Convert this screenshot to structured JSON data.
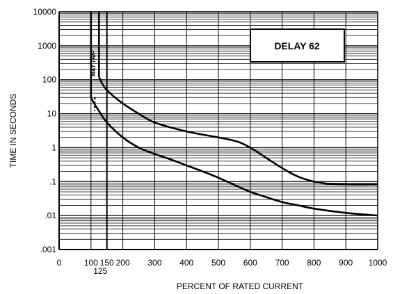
{
  "chart_data": {
    "type": "line",
    "title": "",
    "xlabel": "PERCENT OF RATED CURRENT",
    "ylabel": "TIME IN SECONDS",
    "x_scale": "linear",
    "y_scale": "log",
    "xlim": [
      0,
      1000
    ],
    "ylim": [
      0.001,
      10000
    ],
    "grid": true,
    "x_ticks": [
      {
        "value": 0,
        "label": "0"
      },
      {
        "value": 100,
        "label": "100"
      },
      {
        "value": 150,
        "label": "150"
      },
      {
        "value": 200,
        "label": "200"
      },
      {
        "value": 300,
        "label": "300"
      },
      {
        "value": 400,
        "label": "400"
      },
      {
        "value": 500,
        "label": "500"
      },
      {
        "value": 600,
        "label": "600"
      },
      {
        "value": 700,
        "label": "700"
      },
      {
        "value": 800,
        "label": "800"
      },
      {
        "value": 900,
        "label": "900"
      },
      {
        "value": 1000,
        "label": "1000"
      }
    ],
    "x_extra_tick": {
      "value": 125,
      "label": "125"
    },
    "y_ticks": [
      {
        "value": 10000,
        "label": "10000"
      },
      {
        "value": 1000,
        "label": "1000"
      },
      {
        "value": 100,
        "label": "100"
      },
      {
        "value": 10,
        "label": "10"
      },
      {
        "value": 1,
        "label": "1"
      },
      {
        "value": 0.1,
        "label": ".1"
      },
      {
        "value": 0.01,
        "label": ".01"
      },
      {
        "value": 0.001,
        "label": ".001"
      }
    ],
    "legend": {
      "text": "DELAY 62",
      "position": "top-right"
    },
    "annotations": [
      {
        "text": "MAY TRIP",
        "x_range": [
          100,
          125
        ],
        "y": 300
      }
    ],
    "series": [
      {
        "role": "upper",
        "x": [
          125,
          125,
          140,
          160,
          200,
          250,
          300,
          400,
          500,
          560,
          600,
          650,
          700,
          750,
          800,
          850,
          900,
          1000
        ],
        "y": [
          10000,
          120,
          65,
          40,
          20,
          10,
          5.5,
          3,
          2,
          1.5,
          1,
          0.5,
          0.25,
          0.14,
          0.1,
          0.085,
          0.082,
          0.082
        ]
      },
      {
        "role": "lower",
        "x": [
          100,
          100,
          110,
          125,
          150,
          200,
          250,
          300,
          350,
          400,
          450,
          500,
          550,
          600,
          650,
          700,
          750,
          800,
          900,
          1000
        ],
        "y": [
          10000,
          30,
          20,
          12,
          5.5,
          2,
          1,
          0.65,
          0.45,
          0.3,
          0.2,
          0.13,
          0.08,
          0.05,
          0.035,
          0.025,
          0.02,
          0.016,
          0.012,
          0.01
        ]
      }
    ],
    "markers": [
      {
        "kind": "vertical-line",
        "x": 150,
        "y_range": [
          0.001,
          10000
        ]
      },
      {
        "kind": "dashed-vertical",
        "x": 112,
        "y_range": [
          12,
          30
        ]
      }
    ]
  }
}
